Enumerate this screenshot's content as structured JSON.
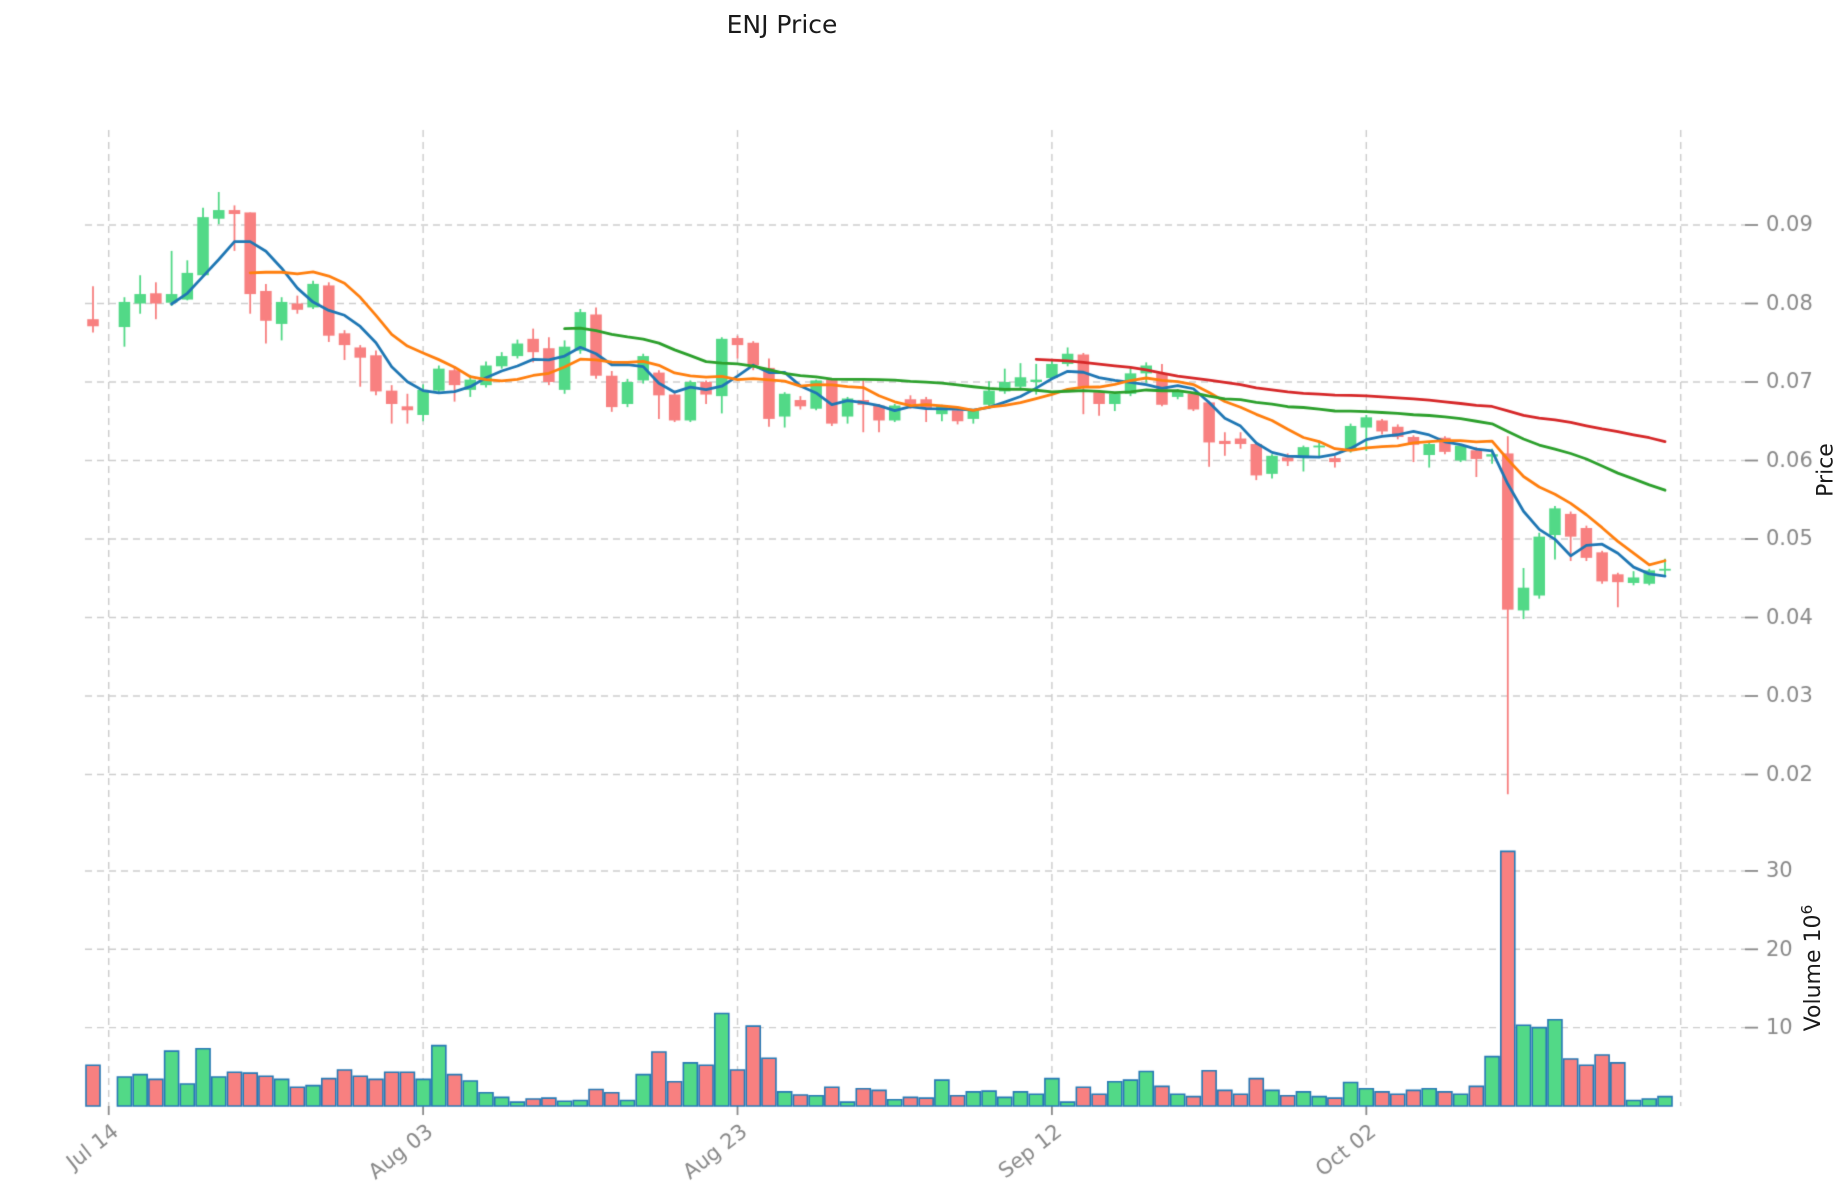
{
  "title": "ENJ Price",
  "axes": {
    "price_label": "Price",
    "volume_label_base": "Volume  10",
    "volume_label_exp": "6"
  },
  "chart_data": {
    "type": "candlestick",
    "title": "ENJ Price",
    "ylabel": "Price",
    "ylabel2": "Volume 10^6",
    "legend": "none",
    "grid": "dashed",
    "price_axis_ticks": [
      0.02,
      0.03,
      0.04,
      0.05,
      0.06,
      0.07,
      0.08,
      0.09
    ],
    "volume_axis_ticks": [
      10,
      20,
      30
    ],
    "x_tick_labels": [
      "Jul 14",
      "Aug 03",
      "Aug 23",
      "Sep 12",
      "Oct 02"
    ],
    "x_tick_slots": [
      1,
      21,
      41,
      61,
      81
    ],
    "extra_grid_slots": [
      101
    ],
    "price_ylim": [
      0.0155,
      0.1021
    ],
    "volume_ylim_millions": [
      0,
      35.2
    ],
    "moving_averages": [
      {
        "period": 5,
        "color": "#1f77b4"
      },
      {
        "period": 10,
        "color": "#ff7f0e"
      },
      {
        "period": 30,
        "color": "#2ca02c"
      },
      {
        "period": 60,
        "color": "#d62728"
      }
    ],
    "colors": {
      "up": "#52d987",
      "down": "#f88080",
      "volume_edge": "#2779b5",
      "grid": "#cdcdcd",
      "tick_text": "#8a8a8a",
      "title_text": "#1a1a1a"
    },
    "candles_format": [
      "slot",
      "open",
      "high",
      "low",
      "close",
      "volume_millions"
    ],
    "candles": [
      [
        0,
        0.078,
        0.0822,
        0.0763,
        0.0771,
        5.2
      ],
      [
        2,
        0.077,
        0.0808,
        0.0745,
        0.0802,
        3.7
      ],
      [
        3,
        0.08,
        0.0836,
        0.0787,
        0.0812,
        4.0
      ],
      [
        4,
        0.0813,
        0.0827,
        0.078,
        0.08,
        3.4
      ],
      [
        5,
        0.0801,
        0.0867,
        0.0797,
        0.0812,
        7.0
      ],
      [
        6,
        0.0805,
        0.0855,
        0.0804,
        0.0839,
        2.8
      ],
      [
        7,
        0.0836,
        0.0922,
        0.0834,
        0.091,
        7.3
      ],
      [
        8,
        0.0908,
        0.0942,
        0.0901,
        0.0919,
        3.7
      ],
      [
        9,
        0.0919,
        0.0925,
        0.0867,
        0.0914,
        4.3
      ],
      [
        10,
        0.0916,
        0.0916,
        0.0787,
        0.0812,
        4.2
      ],
      [
        11,
        0.0816,
        0.0825,
        0.0749,
        0.0778,
        3.8
      ],
      [
        12,
        0.0774,
        0.0808,
        0.0753,
        0.0802,
        3.4
      ],
      [
        13,
        0.08,
        0.081,
        0.0787,
        0.0792,
        2.4
      ],
      [
        14,
        0.0795,
        0.0829,
        0.0793,
        0.0825,
        2.6
      ],
      [
        15,
        0.0823,
        0.0827,
        0.0751,
        0.0759,
        3.5
      ],
      [
        16,
        0.0762,
        0.0766,
        0.0728,
        0.0747,
        4.6
      ],
      [
        17,
        0.0744,
        0.0747,
        0.0694,
        0.0731,
        3.8
      ],
      [
        18,
        0.0734,
        0.074,
        0.0683,
        0.0688,
        3.4
      ],
      [
        19,
        0.0689,
        0.0696,
        0.0647,
        0.0672,
        4.3
      ],
      [
        20,
        0.0669,
        0.0685,
        0.0647,
        0.0664,
        4.3
      ],
      [
        21,
        0.0658,
        0.0697,
        0.065,
        0.069,
        3.4
      ],
      [
        22,
        0.0689,
        0.0721,
        0.0685,
        0.0717,
        7.7
      ],
      [
        23,
        0.0715,
        0.072,
        0.0675,
        0.0696,
        4.0
      ],
      [
        24,
        0.069,
        0.0709,
        0.0681,
        0.0703,
        3.2
      ],
      [
        25,
        0.0696,
        0.0726,
        0.0693,
        0.0721,
        1.7
      ],
      [
        26,
        0.072,
        0.0738,
        0.0717,
        0.0733,
        1.1
      ],
      [
        27,
        0.0733,
        0.0754,
        0.073,
        0.0749,
        0.5
      ],
      [
        28,
        0.0755,
        0.0768,
        0.0725,
        0.0738,
        0.9
      ],
      [
        29,
        0.0743,
        0.0757,
        0.0696,
        0.07,
        1.0
      ],
      [
        30,
        0.069,
        0.0753,
        0.0685,
        0.0745,
        0.6
      ],
      [
        31,
        0.074,
        0.0793,
        0.0736,
        0.0789,
        0.7
      ],
      [
        32,
        0.0786,
        0.0795,
        0.0704,
        0.0708,
        2.1
      ],
      [
        33,
        0.0708,
        0.0714,
        0.0662,
        0.0668,
        1.7
      ],
      [
        34,
        0.0672,
        0.0704,
        0.0668,
        0.07,
        0.7
      ],
      [
        35,
        0.0702,
        0.0736,
        0.0698,
        0.0733,
        4.0
      ],
      [
        36,
        0.0712,
        0.0715,
        0.0653,
        0.0683,
        6.9
      ],
      [
        37,
        0.0684,
        0.0689,
        0.0649,
        0.0651,
        3.1
      ],
      [
        38,
        0.0651,
        0.0702,
        0.0649,
        0.07,
        5.5
      ],
      [
        39,
        0.07,
        0.0702,
        0.0672,
        0.0684,
        5.2
      ],
      [
        40,
        0.0682,
        0.0757,
        0.066,
        0.0755,
        11.8
      ],
      [
        41,
        0.0756,
        0.0759,
        0.073,
        0.0747,
        4.6
      ],
      [
        42,
        0.075,
        0.0752,
        0.0715,
        0.0721,
        10.2
      ],
      [
        43,
        0.0718,
        0.073,
        0.0643,
        0.0653,
        6.1
      ],
      [
        44,
        0.0656,
        0.0687,
        0.0642,
        0.0685,
        1.8
      ],
      [
        45,
        0.0677,
        0.0682,
        0.0665,
        0.0669,
        1.4
      ],
      [
        46,
        0.0666,
        0.0703,
        0.0664,
        0.0702,
        1.3
      ],
      [
        47,
        0.0703,
        0.0704,
        0.0644,
        0.0647,
        2.4
      ],
      [
        48,
        0.0656,
        0.0681,
        0.0647,
        0.0679,
        0.5
      ],
      [
        49,
        0.0677,
        0.0702,
        0.0636,
        0.0671,
        2.2
      ],
      [
        50,
        0.067,
        0.0672,
        0.0636,
        0.0651,
        2.0
      ],
      [
        51,
        0.0651,
        0.0672,
        0.0649,
        0.067,
        0.8
      ],
      [
        52,
        0.0678,
        0.0683,
        0.0666,
        0.0672,
        1.1
      ],
      [
        53,
        0.0678,
        0.0681,
        0.0649,
        0.0666,
        1.0
      ],
      [
        54,
        0.0659,
        0.0671,
        0.065,
        0.067,
        3.3
      ],
      [
        55,
        0.0664,
        0.0667,
        0.0646,
        0.065,
        1.3
      ],
      [
        56,
        0.0653,
        0.0665,
        0.0647,
        0.0663,
        1.8
      ],
      [
        57,
        0.0671,
        0.0701,
        0.0668,
        0.0689,
        1.9
      ],
      [
        58,
        0.0688,
        0.0717,
        0.0685,
        0.07,
        1.1
      ],
      [
        59,
        0.0694,
        0.0724,
        0.0691,
        0.0706,
        1.8
      ],
      [
        60,
        0.07,
        0.0723,
        0.0684,
        0.0703,
        1.5
      ],
      [
        61,
        0.0705,
        0.0727,
        0.0703,
        0.0723,
        3.5
      ],
      [
        62,
        0.0723,
        0.0744,
        0.072,
        0.0736,
        0.5
      ],
      [
        63,
        0.0735,
        0.0737,
        0.0659,
        0.0694,
        2.4
      ],
      [
        64,
        0.0687,
        0.0689,
        0.0657,
        0.0672,
        1.5
      ],
      [
        65,
        0.0672,
        0.0687,
        0.0663,
        0.0685,
        3.1
      ],
      [
        66,
        0.0685,
        0.0719,
        0.0682,
        0.0711,
        3.3
      ],
      [
        67,
        0.0711,
        0.0725,
        0.0699,
        0.0721,
        4.4
      ],
      [
        68,
        0.0711,
        0.0723,
        0.0669,
        0.0671,
        2.5
      ],
      [
        69,
        0.0681,
        0.0691,
        0.0678,
        0.0689,
        1.5
      ],
      [
        70,
        0.0685,
        0.0686,
        0.0663,
        0.0665,
        1.2
      ],
      [
        71,
        0.0674,
        0.0676,
        0.0592,
        0.0623,
        4.5
      ],
      [
        72,
        0.0625,
        0.0636,
        0.0606,
        0.0621,
        2.0
      ],
      [
        73,
        0.0628,
        0.0636,
        0.0615,
        0.0621,
        1.5
      ],
      [
        74,
        0.0621,
        0.0623,
        0.0575,
        0.0581,
        3.5
      ],
      [
        75,
        0.0583,
        0.0608,
        0.0577,
        0.0606,
        2.0
      ],
      [
        76,
        0.0604,
        0.0609,
        0.0593,
        0.0599,
        1.3
      ],
      [
        77,
        0.0603,
        0.0619,
        0.0586,
        0.0617,
        1.8
      ],
      [
        78,
        0.0617,
        0.0625,
        0.0603,
        0.0619,
        1.2
      ],
      [
        79,
        0.0603,
        0.0606,
        0.0591,
        0.0598,
        1.0
      ],
      [
        80,
        0.0612,
        0.0647,
        0.061,
        0.0644,
        3.0
      ],
      [
        81,
        0.0642,
        0.0658,
        0.0612,
        0.0655,
        2.2
      ],
      [
        82,
        0.0651,
        0.0653,
        0.0633,
        0.0637,
        1.8
      ],
      [
        83,
        0.0643,
        0.0646,
        0.0627,
        0.063,
        1.5
      ],
      [
        84,
        0.063,
        0.0632,
        0.0598,
        0.062,
        2.0
      ],
      [
        85,
        0.0607,
        0.0623,
        0.0591,
        0.0621,
        2.2
      ],
      [
        86,
        0.0629,
        0.0631,
        0.0608,
        0.0611,
        1.8
      ],
      [
        87,
        0.06,
        0.0619,
        0.0598,
        0.0619,
        1.5
      ],
      [
        88,
        0.0613,
        0.0617,
        0.0579,
        0.0602,
        2.5
      ],
      [
        89,
        0.0605,
        0.0615,
        0.0596,
        0.0608,
        6.3
      ],
      [
        90,
        0.0609,
        0.0631,
        0.0175,
        0.041,
        32.5
      ],
      [
        91,
        0.0409,
        0.0463,
        0.0398,
        0.0438,
        10.3
      ],
      [
        92,
        0.0428,
        0.0508,
        0.0424,
        0.0503,
        10.0
      ],
      [
        93,
        0.0505,
        0.0542,
        0.0474,
        0.0539,
        11.0
      ],
      [
        94,
        0.0532,
        0.0535,
        0.0472,
        0.0503,
        6.0
      ],
      [
        95,
        0.0514,
        0.0517,
        0.0472,
        0.0476,
        5.2
      ],
      [
        96,
        0.0483,
        0.0485,
        0.0443,
        0.0446,
        6.5
      ],
      [
        97,
        0.0455,
        0.0457,
        0.0413,
        0.0445,
        5.5
      ],
      [
        98,
        0.0444,
        0.0459,
        0.0441,
        0.0451,
        0.7
      ],
      [
        99,
        0.0443,
        0.0462,
        0.0441,
        0.046,
        0.9
      ],
      [
        100,
        0.046,
        0.0475,
        0.0454,
        0.0462,
        1.2
      ]
    ]
  }
}
